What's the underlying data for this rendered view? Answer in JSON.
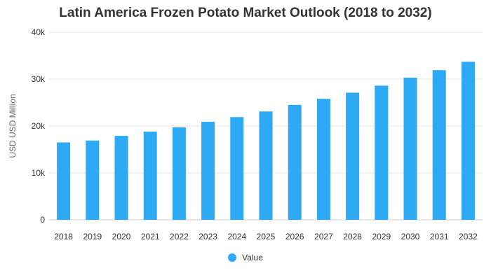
{
  "chart_data": {
    "type": "bar",
    "title": "Latin America Frozen Potato Market Outlook (2018 to 2032)",
    "xlabel": "",
    "ylabel": "USD USD Million",
    "categories": [
      "2018",
      "2019",
      "2020",
      "2021",
      "2022",
      "2023",
      "2024",
      "2025",
      "2026",
      "2027",
      "2028",
      "2029",
      "2030",
      "2031",
      "2032"
    ],
    "series": [
      {
        "name": "Value",
        "color": "#2eaaf5",
        "values": [
          16500,
          16900,
          17900,
          18800,
          19700,
          20900,
          21900,
          23100,
          24500,
          25800,
          27100,
          28600,
          30300,
          31900,
          33700
        ]
      }
    ],
    "ylim": [
      0,
      40000
    ],
    "yticks": [
      0,
      10000,
      20000,
      30000,
      40000
    ],
    "ytick_labels": [
      "0",
      "10k",
      "20k",
      "30k",
      "40k"
    ],
    "grid": true,
    "legend_position": "bottom"
  }
}
